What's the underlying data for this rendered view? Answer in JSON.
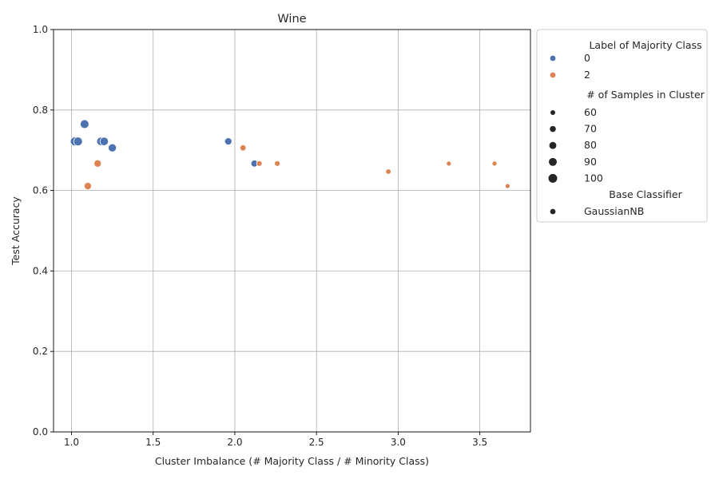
{
  "chart_data": {
    "type": "scatter",
    "title": "Wine",
    "xlabel": "Cluster Imbalance (# Majority Class / # Minority Class)",
    "ylabel": "Test Accuracy",
    "xlim": [
      0.89,
      3.81
    ],
    "ylim": [
      0.0,
      1.0
    ],
    "xticks": [
      "1.0",
      "1.5",
      "2.0",
      "2.5",
      "3.0",
      "3.5"
    ],
    "yticks": [
      "0.0",
      "0.2",
      "0.4",
      "0.6",
      "0.8",
      "1.0"
    ],
    "grid": true,
    "legend_position": "outside-right",
    "colors": {
      "0": "#4c72b0",
      "2": "#dd8452"
    },
    "legend": {
      "hue_title": "Label of Majority Class",
      "hue_entries": [
        "0",
        "2"
      ],
      "size_title": "# of Samples in Cluster",
      "size_entries": [
        "60",
        "70",
        "80",
        "90",
        "100"
      ],
      "style_title": "Base Classifier",
      "style_entries": [
        "GaussianNB"
      ]
    },
    "series": [
      {
        "name": "0",
        "points": [
          {
            "x": 1.02,
            "y": 0.722,
            "n": 100
          },
          {
            "x": 1.04,
            "y": 0.722,
            "n": 100
          },
          {
            "x": 1.08,
            "y": 0.765,
            "n": 98
          },
          {
            "x": 1.18,
            "y": 0.722,
            "n": 95
          },
          {
            "x": 1.2,
            "y": 0.722,
            "n": 95
          },
          {
            "x": 1.25,
            "y": 0.706,
            "n": 92
          },
          {
            "x": 1.96,
            "y": 0.722,
            "n": 82
          },
          {
            "x": 2.12,
            "y": 0.667,
            "n": 78
          }
        ]
      },
      {
        "name": "2",
        "points": [
          {
            "x": 1.16,
            "y": 0.667,
            "n": 82
          },
          {
            "x": 1.1,
            "y": 0.611,
            "n": 83
          },
          {
            "x": 2.05,
            "y": 0.706,
            "n": 70
          },
          {
            "x": 2.15,
            "y": 0.667,
            "n": 66
          },
          {
            "x": 2.26,
            "y": 0.667,
            "n": 66
          },
          {
            "x": 2.94,
            "y": 0.647,
            "n": 64
          },
          {
            "x": 3.31,
            "y": 0.667,
            "n": 60
          },
          {
            "x": 3.59,
            "y": 0.667,
            "n": 60
          },
          {
            "x": 3.67,
            "y": 0.611,
            "n": 60
          }
        ]
      }
    ]
  }
}
